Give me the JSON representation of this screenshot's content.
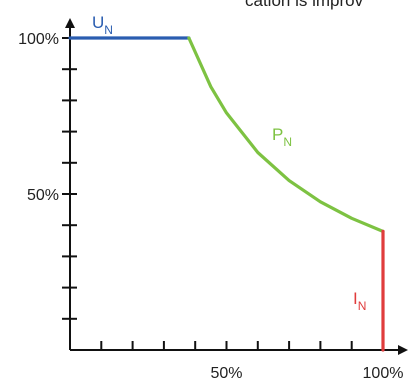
{
  "header_text": "cation is improv",
  "chart_data": {
    "type": "line",
    "x_tick_labels": [
      {
        "x": 50,
        "label": "50%"
      },
      {
        "x": 100,
        "label": "100%"
      }
    ],
    "y_tick_labels": [
      {
        "y": 50,
        "label": "50%"
      },
      {
        "y": 100,
        "label": "100%"
      }
    ],
    "xlim": [
      0,
      100
    ],
    "ylim": [
      0,
      100
    ],
    "x_minor_ticks": [
      10,
      20,
      30,
      40,
      50,
      60,
      70,
      80,
      90,
      100
    ],
    "y_minor_ticks": [
      10,
      20,
      30,
      40,
      50,
      60,
      70,
      80,
      90,
      100
    ],
    "series": [
      {
        "key": "UN",
        "main": "U",
        "sub": "N",
        "color": "#2a5db0",
        "points": [
          [
            0,
            100
          ],
          [
            38,
            100
          ]
        ]
      },
      {
        "key": "PN",
        "main": "P",
        "sub": "N",
        "color": "#7dc242",
        "points": [
          [
            38,
            100
          ],
          [
            45,
            84.4
          ],
          [
            50,
            76
          ],
          [
            60,
            63.3
          ],
          [
            70,
            54.3
          ],
          [
            80,
            47.5
          ],
          [
            90,
            42.2
          ],
          [
            100,
            38
          ]
        ]
      },
      {
        "key": "IN",
        "main": "I",
        "sub": "N",
        "color": "#e03c3c",
        "points": [
          [
            100,
            38
          ],
          [
            100,
            0
          ]
        ]
      }
    ]
  }
}
